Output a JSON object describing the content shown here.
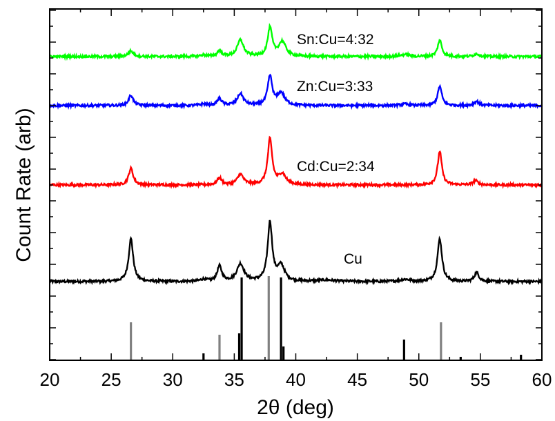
{
  "chart_data": {
    "type": "line",
    "title": "",
    "xlabel": "2θ (deg)",
    "ylabel": "Count Rate (arb)",
    "xlim": [
      20,
      60
    ],
    "x_ticks": [
      20,
      25,
      30,
      35,
      40,
      45,
      50,
      55,
      60
    ],
    "y_ticks_visible_labels": false,
    "grid": false,
    "legend": "none",
    "series": [
      {
        "name": "Cu",
        "color": "#000000",
        "baseline": 0,
        "peaks": [
          [
            26.6,
            6.2,
            0.22
          ],
          [
            32.5,
            0.3,
            0.3
          ],
          [
            33.8,
            2.2,
            0.22
          ],
          [
            35.5,
            2.5,
            0.35
          ],
          [
            37.9,
            8.5,
            0.22
          ],
          [
            38.8,
            2.2,
            0.35
          ],
          [
            42.5,
            0.2,
            0.8
          ],
          [
            48.9,
            0.3,
            0.5
          ],
          [
            51.7,
            6.2,
            0.22
          ],
          [
            54.7,
            1.3,
            0.22
          ]
        ]
      },
      {
        "name": "Cd:Cu=2:34",
        "color": "#ff0000",
        "baseline": 0,
        "peaks": [
          [
            26.6,
            2.4,
            0.22
          ],
          [
            33.8,
            1.0,
            0.22
          ],
          [
            35.5,
            1.5,
            0.3
          ],
          [
            37.9,
            6.6,
            0.22
          ],
          [
            38.9,
            1.5,
            0.35
          ],
          [
            51.7,
            4.9,
            0.2
          ],
          [
            54.6,
            0.6,
            0.25
          ]
        ]
      },
      {
        "name": "Zn:Cu=3:33",
        "color": "#0000ff",
        "baseline": 0,
        "peaks": [
          [
            26.6,
            1.5,
            0.22
          ],
          [
            32.5,
            0.2,
            0.3
          ],
          [
            33.8,
            1.0,
            0.22
          ],
          [
            35.5,
            1.7,
            0.3
          ],
          [
            37.9,
            4.2,
            0.22
          ],
          [
            38.8,
            1.8,
            0.35
          ],
          [
            48.9,
            0.2,
            0.4
          ],
          [
            51.7,
            2.8,
            0.2
          ],
          [
            54.7,
            0.6,
            0.25
          ]
        ]
      },
      {
        "name": "Sn:Cu=4:32",
        "color": "#00ff00",
        "baseline": 0,
        "peaks": [
          [
            26.6,
            0.8,
            0.25
          ],
          [
            32.5,
            0.2,
            0.3
          ],
          [
            33.8,
            0.8,
            0.22
          ],
          [
            35.5,
            2.4,
            0.3
          ],
          [
            37.9,
            4.1,
            0.22
          ],
          [
            38.9,
            2.1,
            0.35
          ],
          [
            48.9,
            0.3,
            0.4
          ],
          [
            51.7,
            2.4,
            0.2
          ],
          [
            54.7,
            0.4,
            0.25
          ]
        ]
      }
    ],
    "reference_patterns": [
      {
        "color": "#808080",
        "lines": [
          [
            26.6,
            5.5
          ],
          [
            33.8,
            3.7
          ],
          [
            37.8,
            12.2
          ],
          [
            51.8,
            5.5
          ]
        ]
      },
      {
        "color": "#000000",
        "lines": [
          [
            32.5,
            1.0
          ],
          [
            35.4,
            3.9
          ],
          [
            35.6,
            12.0
          ],
          [
            38.8,
            12.0
          ],
          [
            39.0,
            2.0
          ],
          [
            48.8,
            3.0
          ],
          [
            53.4,
            0.5
          ],
          [
            58.3,
            0.8
          ]
        ]
      }
    ]
  }
}
